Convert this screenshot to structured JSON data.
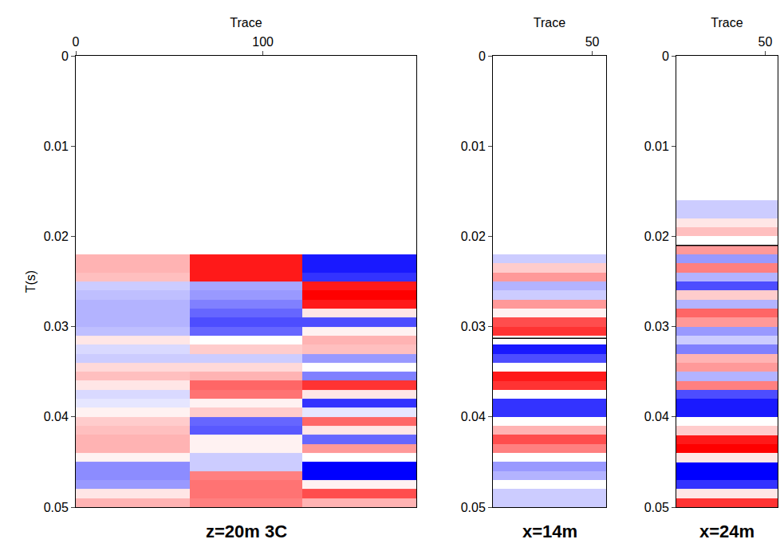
{
  "chart_data": [
    {
      "type": "heatmap",
      "title": "z=20m 3C",
      "x_label": "Trace",
      "y_label": "T(s)",
      "xlim": [
        0,
        182
      ],
      "xticks": [
        0,
        100
      ],
      "ylim": [
        0,
        0.05
      ],
      "yticks": [
        0,
        0.01,
        0.02,
        0.03,
        0.04,
        0.05
      ],
      "zlim": [
        -1,
        1
      ],
      "trace_edges": [
        0,
        61,
        121,
        182
      ],
      "time_edges": [
        0.022,
        0.023,
        0.024,
        0.025,
        0.026,
        0.027,
        0.028,
        0.029,
        0.03,
        0.031,
        0.032,
        0.033,
        0.034,
        0.035,
        0.036,
        0.037,
        0.038,
        0.039,
        0.04,
        0.041,
        0.042,
        0.043,
        0.044,
        0.045,
        0.046,
        0.047,
        0.048,
        0.049,
        0.05
      ],
      "cells": [
        [
          0.3,
          0.9,
          -0.9
        ],
        [
          0.3,
          0.9,
          -0.9
        ],
        [
          0.25,
          0.9,
          -0.8
        ],
        [
          -0.2,
          -0.35,
          0.9
        ],
        [
          -0.25,
          -0.4,
          1
        ],
        [
          -0.3,
          -0.5,
          0.9
        ],
        [
          -0.3,
          -0.6,
          0.1
        ],
        [
          -0.3,
          -0.7,
          -0.7
        ],
        [
          -0.25,
          -0.6,
          0.05
        ],
        [
          0.1,
          0,
          0.3
        ],
        [
          -0.15,
          0.2,
          0.25
        ],
        [
          -0.2,
          -0.2,
          -0.4
        ],
        [
          0.15,
          0.15,
          0
        ],
        [
          0.25,
          0.3,
          -0.5
        ],
        [
          0.1,
          0.6,
          0.8
        ],
        [
          -0.15,
          0.55,
          0.1
        ],
        [
          -0.1,
          0.05,
          -0.8
        ],
        [
          0.05,
          0.2,
          -0.1
        ],
        [
          0.2,
          -0.6,
          0.6
        ],
        [
          0.25,
          -0.65,
          0.1
        ],
        [
          0.3,
          0.05,
          -0.6
        ],
        [
          0.3,
          0.05,
          0.4
        ],
        [
          0.05,
          -0.2,
          0
        ],
        [
          -0.45,
          -0.2,
          -1
        ],
        [
          -0.45,
          0.5,
          -1
        ],
        [
          -0.4,
          0.55,
          0.05
        ],
        [
          0.1,
          0.55,
          0.7
        ],
        [
          0.3,
          0.5,
          0.3
        ]
      ]
    },
    {
      "type": "heatmap",
      "title": "x=14m",
      "x_label": "Trace",
      "xlim": [
        0,
        57
      ],
      "xticks": [
        50
      ],
      "ylim": [
        0,
        0.05
      ],
      "yticks": [
        0,
        0.01,
        0.02,
        0.03,
        0.04,
        0.05
      ],
      "zlim": [
        -1,
        1
      ],
      "trace_edges": [
        0,
        57
      ],
      "time_edges": [
        0.022,
        0.023,
        0.024,
        0.025,
        0.026,
        0.027,
        0.028,
        0.029,
        0.03,
        0.031,
        0.032,
        0.033,
        0.034,
        0.035,
        0.036,
        0.037,
        0.038,
        0.039,
        0.04,
        0.041,
        0.042,
        0.043,
        0.044,
        0.045,
        0.046,
        0.047,
        0.048,
        0.049,
        0.05
      ],
      "cells": [
        [
          -0.2
        ],
        [
          0.2
        ],
        [
          0.4
        ],
        [
          -0.3
        ],
        [
          -0.2
        ],
        [
          0.4
        ],
        [
          0.05
        ],
        [
          0.7
        ],
        [
          0.8
        ],
        [
          0
        ],
        [
          -0.9
        ],
        [
          -0.7
        ],
        [
          0
        ],
        [
          0.9
        ],
        [
          0.8
        ],
        [
          0
        ],
        [
          -0.8
        ],
        [
          -0.8
        ],
        [
          0
        ],
        [
          0.3
        ],
        [
          0.7
        ],
        [
          0.5
        ],
        [
          0
        ],
        [
          -0.4
        ],
        [
          -0.3
        ],
        [
          0
        ],
        [
          -0.2
        ],
        [
          -0.2
        ]
      ],
      "pick": 0.0313
    },
    {
      "type": "heatmap",
      "title": "x=24m",
      "x_label": "Trace",
      "xlim": [
        0,
        57
      ],
      "xticks": [
        50
      ],
      "ylim": [
        0,
        0.05
      ],
      "yticks": [
        0,
        0.01,
        0.02,
        0.03,
        0.04,
        0.05
      ],
      "zlim": [
        -1,
        1
      ],
      "trace_edges": [
        0,
        57
      ],
      "time_edges": [
        0.016,
        0.017,
        0.018,
        0.019,
        0.02,
        0.021,
        0.022,
        0.023,
        0.024,
        0.025,
        0.026,
        0.027,
        0.028,
        0.029,
        0.03,
        0.031,
        0.032,
        0.033,
        0.034,
        0.035,
        0.036,
        0.037,
        0.038,
        0.039,
        0.04,
        0.041,
        0.042,
        0.043,
        0.044,
        0.045,
        0.046,
        0.047,
        0.048,
        0.049,
        0.05
      ],
      "cells": [
        [
          -0.2
        ],
        [
          -0.2
        ],
        [
          0.1
        ],
        [
          0.25
        ],
        [
          0
        ],
        [
          0.4
        ],
        [
          -0.4
        ],
        [
          0.5
        ],
        [
          -0.3
        ],
        [
          -0.7
        ],
        [
          0.2
        ],
        [
          -0.3
        ],
        [
          0.6
        ],
        [
          0.4
        ],
        [
          -0.4
        ],
        [
          -0.2
        ],
        [
          -0.5
        ],
        [
          0.3
        ],
        [
          0.4
        ],
        [
          -0.3
        ],
        [
          0.5
        ],
        [
          -0.7
        ],
        [
          -0.9
        ],
        [
          -0.9
        ],
        [
          0
        ],
        [
          0.2
        ],
        [
          0.9
        ],
        [
          1
        ],
        [
          0.1
        ],
        [
          -1
        ],
        [
          -1
        ],
        [
          -0.8
        ],
        [
          0.1
        ],
        [
          0.8
        ]
      ],
      "pick": 0.021
    }
  ]
}
